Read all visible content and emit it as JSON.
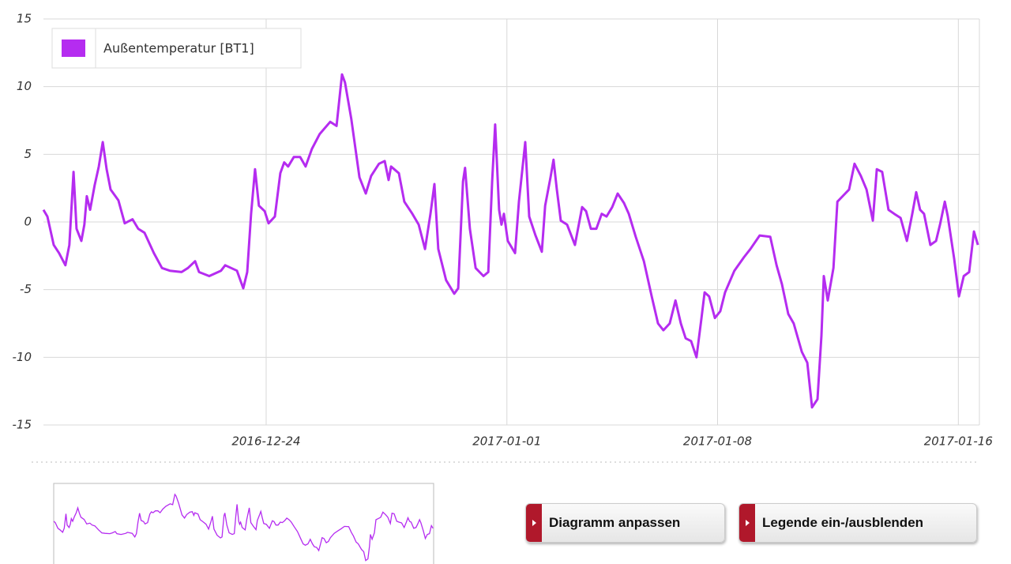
{
  "chart_data": {
    "type": "line",
    "x": [
      -7.4,
      -7.27,
      -7.06,
      -6.88,
      -6.67,
      -6.54,
      -6.4,
      -6.3,
      -6.14,
      -6.04,
      -5.96,
      -5.85,
      -5.7,
      -5.56,
      -5.43,
      -5.3,
      -5.17,
      -4.91,
      -4.7,
      -4.44,
      -4.25,
      -4.04,
      -3.73,
      -3.46,
      -3.2,
      -2.81,
      -2.6,
      -2.36,
      -2.23,
      -1.89,
      -1.5,
      -1.36,
      -0.97,
      -0.76,
      -0.63,
      -0.5,
      -0.37,
      -0.24,
      -0.05,
      0.08,
      0.29,
      0.47,
      0.6,
      0.73,
      0.92,
      1.13,
      1.31,
      1.52,
      1.78,
      2.13,
      2.34,
      2.52,
      2.62,
      2.83,
      3.1,
      3.31,
      3.49,
      3.75,
      3.94,
      4.07,
      4.15,
      4.41,
      4.59,
      4.86,
      5.07,
      5.28,
      5.46,
      5.59,
      5.72,
      5.98,
      6.25,
      6.38,
      6.54,
      6.61,
      6.77,
      6.96,
      7.22,
      7.38,
      7.51,
      7.61,
      7.74,
      7.82,
      7.9,
      8.03,
      8.27,
      8.4,
      8.61,
      8.74,
      8.95,
      9.16,
      9.27,
      9.45,
      9.55,
      9.66,
      9.79,
      10.0,
      10.26,
      10.5,
      10.63,
      10.79,
      10.97,
      11.15,
      11.31,
      11.5,
      11.68,
      11.89,
      12.05,
      12.28,
      12.55,
      12.81,
      13.02,
      13.2,
      13.41,
      13.6,
      13.78,
      13.94,
      14.12,
      14.3,
      14.46,
      14.57,
      14.72,
      14.91,
      15.09,
      15.25,
      15.56,
      15.88,
      16.09,
      16.4,
      16.75,
      16.96,
      17.14,
      17.35,
      17.53,
      17.8,
      17.98,
      18.14,
      18.32,
      18.45,
      18.53,
      18.66,
      18.85,
      18.98,
      19.24,
      19.37,
      19.55,
      19.76,
      19.95,
      20.16,
      20.29,
      20.47,
      20.68,
      20.87,
      21.08,
      21.29,
      21.47,
      21.6,
      21.73,
      21.86,
      22.07,
      22.26,
      22.39,
      22.55,
      22.65,
      22.86,
      23.02,
      23.18,
      23.36,
      23.52,
      23.65
    ],
    "series": [
      {
        "name": "Außentemperatur [BT1]",
        "color": "#b52cf0",
        "values": [
          0.9,
          0.4,
          -1.7,
          -2.3,
          -3.2,
          -1.7,
          3.7,
          -0.5,
          -1.4,
          -0.2,
          1.9,
          0.9,
          2.7,
          4.1,
          5.9,
          3.9,
          2.4,
          1.6,
          -0.1,
          0.2,
          -0.5,
          -0.8,
          -2.3,
          -3.4,
          -3.6,
          -3.7,
          -3.4,
          -2.9,
          -3.7,
          -4.0,
          -3.6,
          -3.2,
          -3.6,
          -4.9,
          -3.7,
          0.6,
          3.9,
          1.2,
          0.8,
          -0.1,
          0.4,
          3.6,
          4.4,
          4.1,
          4.8,
          4.8,
          4.1,
          5.4,
          6.5,
          7.4,
          7.1,
          10.9,
          10.3,
          7.6,
          3.3,
          2.1,
          3.4,
          4.3,
          4.5,
          3.1,
          4.1,
          3.6,
          1.5,
          0.6,
          -0.2,
          -2.0,
          0.6,
          2.8,
          -2.0,
          -4.3,
          -5.3,
          -4.9,
          3.0,
          4.0,
          -0.5,
          -3.4,
          -4.0,
          -3.7,
          3.0,
          7.2,
          0.9,
          -0.2,
          0.6,
          -1.4,
          -2.3,
          1.5,
          5.9,
          0.4,
          -1.0,
          -2.2,
          1.2,
          3.3,
          4.6,
          2.4,
          0.1,
          -0.2,
          -1.7,
          1.1,
          0.8,
          -0.5,
          -0.5,
          0.6,
          0.4,
          1.1,
          2.1,
          1.4,
          0.6,
          -1.1,
          -2.9,
          -5.5,
          -7.5,
          -8.0,
          -7.5,
          -5.8,
          -7.5,
          -8.6,
          -8.8,
          -10.0,
          -7.2,
          -5.2,
          -5.5,
          -7.1,
          -6.6,
          -5.2,
          -3.6,
          -2.6,
          -2.0,
          -1.0,
          -1.1,
          -3.2,
          -4.6,
          -6.8,
          -7.5,
          -9.6,
          -10.4,
          -13.7,
          -13.1,
          -8.4,
          -4.0,
          -5.8,
          -3.4,
          1.5,
          2.1,
          2.4,
          4.3,
          3.4,
          2.4,
          0.1,
          3.9,
          3.7,
          0.9,
          0.6,
          0.3,
          -1.4,
          0.6,
          2.2,
          0.9,
          0.6,
          -1.7,
          -1.4,
          -0.2,
          1.5,
          0.4,
          -2.7,
          -5.5,
          -4.0,
          -3.7,
          -0.7,
          -1.7
        ]
      }
    ],
    "xlim": [
      -7.4,
      23.7
    ],
    "xticks": [
      {
        "value": 0,
        "label": "2016-12-24"
      },
      {
        "value": 8,
        "label": "2017-01-01"
      },
      {
        "value": 15,
        "label": "2017-01-08"
      },
      {
        "value": 23,
        "label": "2017-01-16"
      }
    ],
    "ylim": [
      -15,
      15
    ],
    "yticks": [
      -15,
      -10,
      -5,
      0,
      5,
      10,
      15
    ],
    "grid": true,
    "legend": "top-left"
  },
  "buttons": [
    "Diagramm anpassen",
    "Legende ein-/ausblenden"
  ]
}
